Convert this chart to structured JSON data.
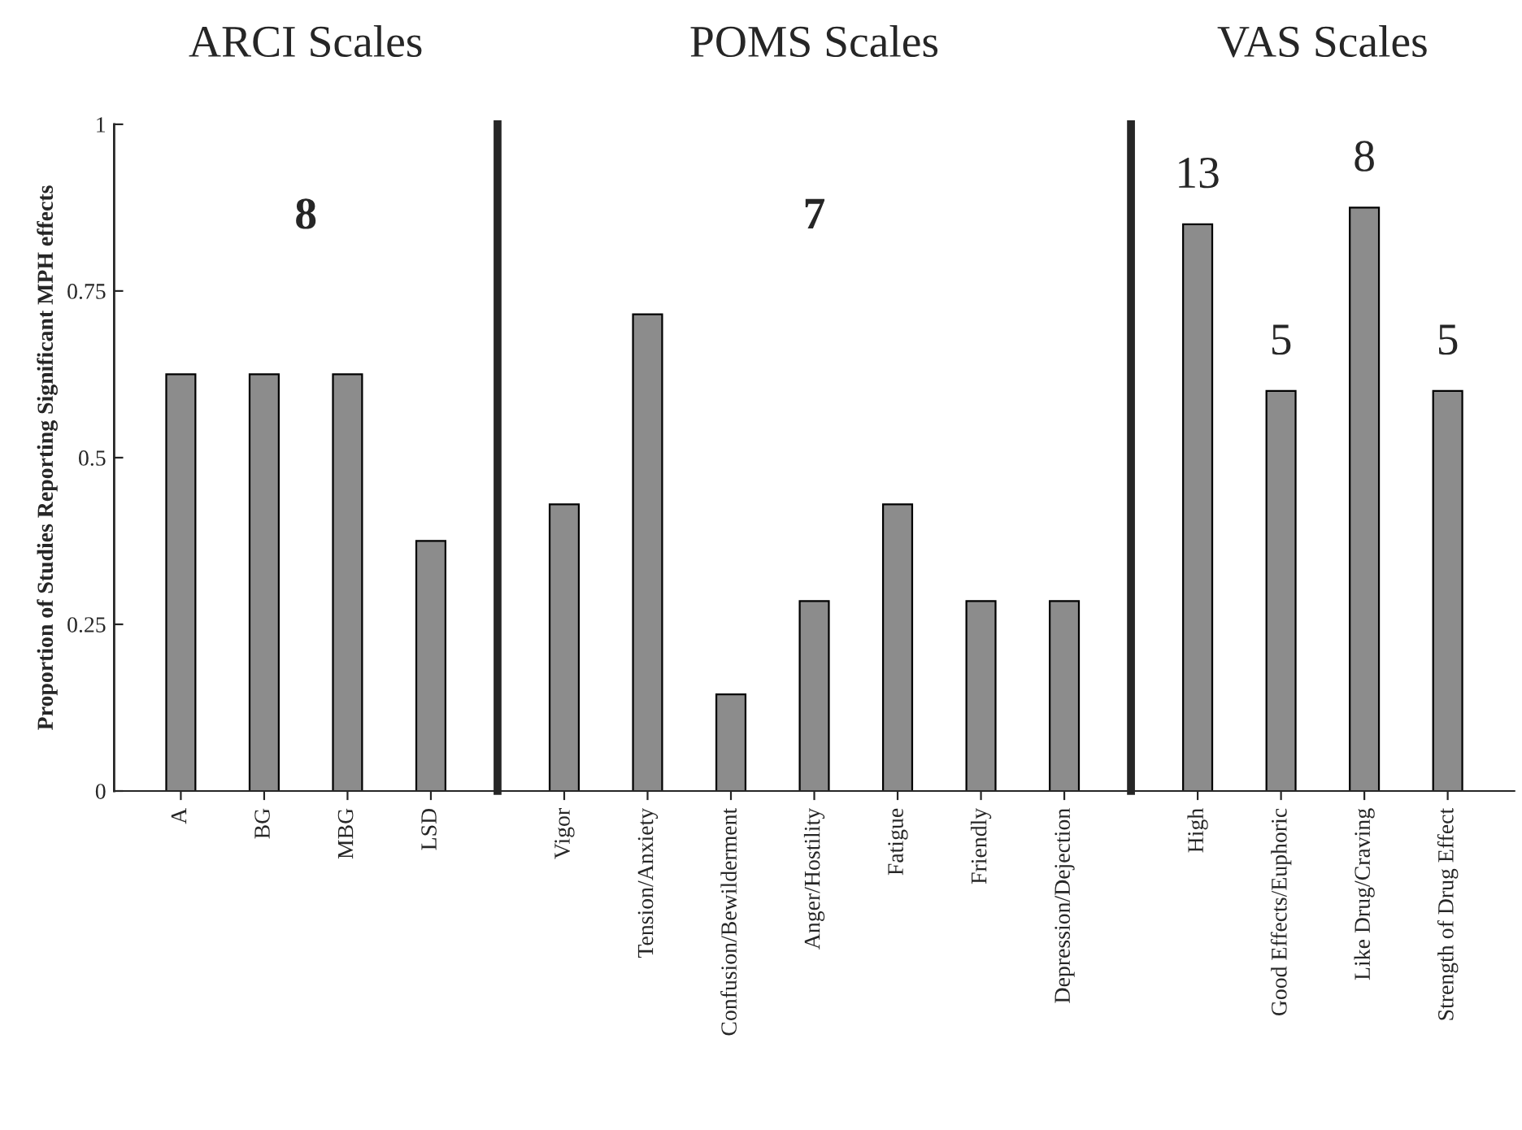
{
  "chart_data": [
    {
      "type": "bar",
      "title": "ARCI Scales",
      "ylabel": "Proportion of Studies Reporting Significant MPH effects",
      "categories": [
        "A",
        "BG",
        "MBG",
        "LSD"
      ],
      "values": [
        0.625,
        0.625,
        0.625,
        0.375
      ],
      "color": "#8c8c8c",
      "ylim": [
        0,
        1
      ],
      "yticks": [
        0,
        0.25,
        0.5,
        0.75,
        1
      ],
      "annotations": [
        "8"
      ]
    },
    {
      "type": "bar",
      "title": "POMS Scales",
      "categories": [
        "Vigor",
        "Tension/Anxiety",
        "Confusion/Bewilderment",
        "Anger/Hostility",
        "Fatigue",
        "Friendly",
        "Depression/Dejection"
      ],
      "values": [
        0.43,
        0.715,
        0.145,
        0.285,
        0.43,
        0.285,
        0.285
      ],
      "color": "#8c8c8c",
      "ylim": [
        0,
        1
      ],
      "yticks": [
        0,
        0.25,
        0.5,
        0.75,
        1
      ],
      "tick_labels": "x",
      "annotations": [
        "7"
      ]
    },
    {
      "type": "bar",
      "title": "VAS Scales",
      "categories": [
        "High",
        "Good Effects/Euphoric",
        "Like Drug/Craving",
        "Strength of Drug Effect"
      ],
      "values": [
        0.85,
        0.6,
        0.875,
        0.6
      ],
      "color": "#8c8c8c",
      "ylim": [
        0,
        1
      ],
      "yticks": [
        0,
        0.25,
        0.5,
        0.75,
        1
      ],
      "tick_labels": "x",
      "annotations": [
        "13",
        "5",
        "8",
        "5"
      ]
    }
  ]
}
